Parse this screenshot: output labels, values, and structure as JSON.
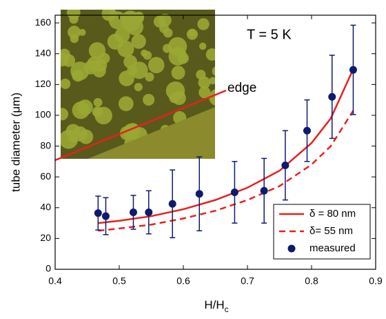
{
  "chart_data": {
    "type": "scatter",
    "xlabel": "H/H",
    "xlabel_sub": "c",
    "ylabel": "tube diameter (μm)",
    "annotations": [
      "T = 5 K",
      "edge"
    ],
    "xlim": [
      0.4,
      0.9
    ],
    "ylim": [
      0,
      165
    ],
    "xticks": [
      0.4,
      0.5,
      0.6,
      0.7,
      0.8,
      0.9
    ],
    "yticks": [
      0,
      20,
      40,
      60,
      80,
      100,
      120,
      140,
      160
    ],
    "legend": "lower right",
    "series": [
      {
        "name": "δ = 80 nm",
        "style": "solid",
        "color": "#e8201c",
        "x": [
          0.467,
          0.5,
          0.55,
          0.6,
          0.65,
          0.7,
          0.75,
          0.8,
          0.83,
          0.865
        ],
        "values": [
          30,
          31.5,
          34.5,
          39,
          45,
          53,
          64,
          82,
          98,
          130
        ]
      },
      {
        "name": "δ= 55 nm",
        "style": "dashed",
        "color": "#e8201c",
        "x": [
          0.467,
          0.5,
          0.55,
          0.6,
          0.65,
          0.7,
          0.75,
          0.8,
          0.83,
          0.865
        ],
        "values": [
          25,
          26.5,
          29,
          33,
          38,
          45,
          54,
          68,
          80,
          103
        ]
      },
      {
        "name": "measured",
        "style": "points",
        "color": "#0d1a6e",
        "x": [
          0.467,
          0.479,
          0.522,
          0.546,
          0.583,
          0.625,
          0.68,
          0.726,
          0.759,
          0.793,
          0.832,
          0.865
        ],
        "values": [
          36.5,
          34.5,
          37,
          37,
          42.5,
          49,
          50,
          51,
          67.5,
          90,
          112,
          129.5
        ],
        "errors": [
          11,
          12,
          11,
          14,
          22,
          24,
          20,
          21,
          22.5,
          20,
          27,
          29
        ]
      }
    ]
  }
}
